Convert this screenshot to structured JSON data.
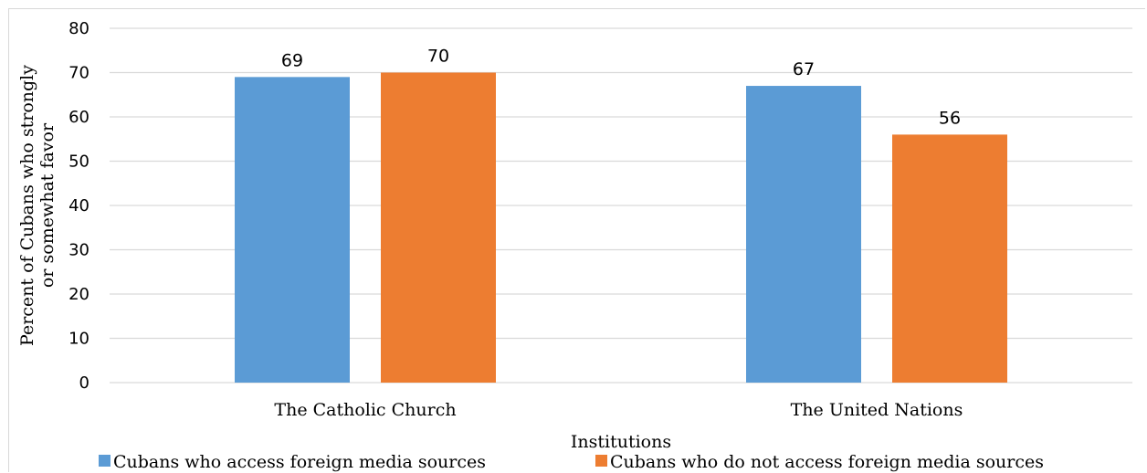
{
  "chart_data": {
    "type": "bar",
    "categories": [
      "The Catholic Church",
      "The United Nations"
    ],
    "series": [
      {
        "name": "Cubans who access foreign media sources",
        "values": [
          69,
          67
        ],
        "color": "#5b9bd5"
      },
      {
        "name": "Cubans who do not access foreign media sources",
        "values": [
          70,
          56
        ],
        "color": "#ed7d31"
      }
    ],
    "xlabel": "Institutions",
    "ylabel_lines": [
      "Percent of Cubans who strongly",
      "or somewhat favor"
    ],
    "ylim": [
      0,
      80
    ],
    "yticks": [
      0,
      10,
      20,
      30,
      40,
      50,
      60,
      70,
      80
    ],
    "grid": true,
    "legend_position": "bottom",
    "gridline_color": "#d9d9d9"
  }
}
